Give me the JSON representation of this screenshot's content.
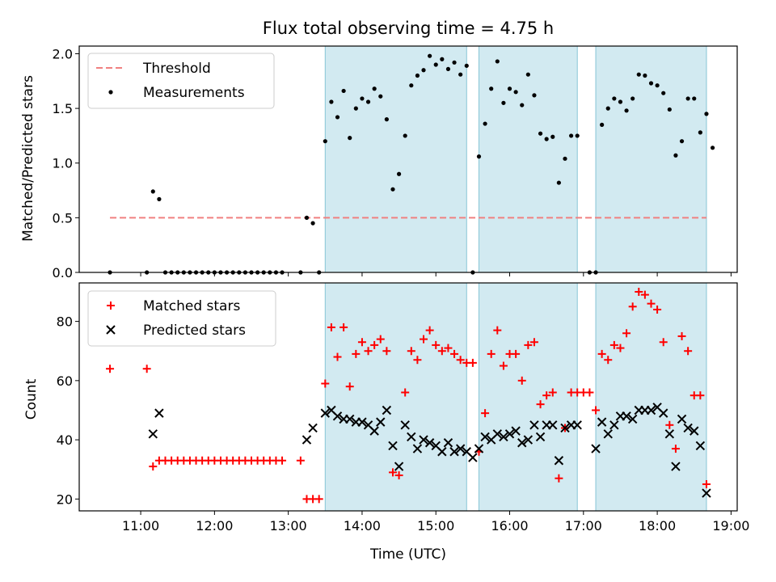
{
  "chart_data": [
    {
      "type": "scatter",
      "title": "Flux total observing time = 4.75 h",
      "ylabel": "Matched/Predicted stars",
      "ylim": [
        0,
        2.07
      ],
      "yticks": [
        "0.0",
        "0.5",
        "1.0",
        "1.5",
        "2.0"
      ],
      "ytick_values": [
        0,
        0.5,
        1.0,
        1.5,
        2.0
      ],
      "threshold": {
        "name": "Threshold",
        "value": 0.5,
        "x_range": [
          "10:35",
          "18:40"
        ],
        "color": "#f08080"
      },
      "legend": {
        "placement": "top-left",
        "entries": [
          "Threshold",
          "Measurements"
        ]
      },
      "series": [
        {
          "name": "Measurements",
          "color": "#000000",
          "points": [
            [
              "10:35",
              0
            ],
            [
              "11:05",
              0
            ],
            [
              "11:10",
              0.74
            ],
            [
              "11:15",
              0.67
            ],
            [
              "11:20",
              0
            ],
            [
              "11:25",
              0
            ],
            [
              "11:30",
              0
            ],
            [
              "11:35",
              0
            ],
            [
              "11:40",
              0
            ],
            [
              "11:45",
              0
            ],
            [
              "11:50",
              0
            ],
            [
              "11:55",
              0
            ],
            [
              "12:00",
              0
            ],
            [
              "12:05",
              0
            ],
            [
              "12:10",
              0
            ],
            [
              "12:15",
              0
            ],
            [
              "12:20",
              0
            ],
            [
              "12:25",
              0
            ],
            [
              "12:30",
              0
            ],
            [
              "12:35",
              0
            ],
            [
              "12:40",
              0
            ],
            [
              "12:45",
              0
            ],
            [
              "12:50",
              0
            ],
            [
              "12:55",
              0
            ],
            [
              "13:10",
              0
            ],
            [
              "13:15",
              0.5
            ],
            [
              "13:20",
              0.45
            ],
            [
              "13:25",
              0
            ],
            [
              "13:30",
              1.2
            ],
            [
              "13:35",
              1.56
            ],
            [
              "13:40",
              1.42
            ],
            [
              "13:45",
              1.66
            ],
            [
              "13:50",
              1.23
            ],
            [
              "13:55",
              1.5
            ],
            [
              "14:00",
              1.59
            ],
            [
              "14:05",
              1.56
            ],
            [
              "14:10",
              1.68
            ],
            [
              "14:15",
              1.61
            ],
            [
              "14:20",
              1.4
            ],
            [
              "14:25",
              0.76
            ],
            [
              "14:30",
              0.9
            ],
            [
              "14:35",
              1.25
            ],
            [
              "14:40",
              1.71
            ],
            [
              "14:45",
              1.8
            ],
            [
              "14:50",
              1.85
            ],
            [
              "14:55",
              1.98
            ],
            [
              "15:00",
              1.9
            ],
            [
              "15:05",
              1.95
            ],
            [
              "15:10",
              1.86
            ],
            [
              "15:15",
              1.92
            ],
            [
              "15:20",
              1.81
            ],
            [
              "15:25",
              1.89
            ],
            [
              "15:30",
              0
            ],
            [
              "15:35",
              1.06
            ],
            [
              "15:40",
              1.36
            ],
            [
              "15:45",
              1.68
            ],
            [
              "15:50",
              1.93
            ],
            [
              "15:55",
              1.55
            ],
            [
              "16:00",
              1.68
            ],
            [
              "16:05",
              1.65
            ],
            [
              "16:10",
              1.53
            ],
            [
              "16:15",
              1.81
            ],
            [
              "16:20",
              1.62
            ],
            [
              "16:25",
              1.27
            ],
            [
              "16:30",
              1.22
            ],
            [
              "16:35",
              1.24
            ],
            [
              "16:40",
              0.82
            ],
            [
              "16:45",
              1.04
            ],
            [
              "16:50",
              1.25
            ],
            [
              "16:55",
              1.25
            ],
            [
              "17:05",
              0
            ],
            [
              "17:10",
              0
            ],
            [
              "17:15",
              1.35
            ],
            [
              "17:20",
              1.5
            ],
            [
              "17:25",
              1.59
            ],
            [
              "17:30",
              1.56
            ],
            [
              "17:35",
              1.48
            ],
            [
              "17:40",
              1.59
            ],
            [
              "17:45",
              1.81
            ],
            [
              "17:50",
              1.8
            ],
            [
              "17:55",
              1.73
            ],
            [
              "18:00",
              1.71
            ],
            [
              "18:05",
              1.64
            ],
            [
              "18:10",
              1.49
            ],
            [
              "18:15",
              1.07
            ],
            [
              "18:20",
              1.2
            ],
            [
              "18:25",
              1.59
            ],
            [
              "18:30",
              1.59
            ],
            [
              "18:35",
              1.28
            ],
            [
              "18:40",
              1.45
            ],
            [
              "18:45",
              1.14
            ]
          ]
        }
      ]
    },
    {
      "type": "scatter",
      "xlabel": "Time (UTC)",
      "ylabel": "Count",
      "ylim": [
        16,
        93
      ],
      "yticks": [
        "20",
        "40",
        "60",
        "80"
      ],
      "ytick_values": [
        20,
        40,
        60,
        80
      ],
      "legend": {
        "placement": "top-left",
        "entries": [
          "Matched stars",
          "Predicted stars"
        ]
      },
      "series": [
        {
          "name": "Matched stars",
          "marker": "+",
          "color": "#ff0000",
          "points": [
            [
              "10:35",
              64
            ],
            [
              "11:05",
              64
            ],
            [
              "11:10",
              31
            ],
            [
              "11:15",
              33
            ],
            [
              "11:20",
              33
            ],
            [
              "11:25",
              33
            ],
            [
              "11:30",
              33
            ],
            [
              "11:35",
              33
            ],
            [
              "11:40",
              33
            ],
            [
              "11:45",
              33
            ],
            [
              "11:50",
              33
            ],
            [
              "11:55",
              33
            ],
            [
              "12:00",
              33
            ],
            [
              "12:05",
              33
            ],
            [
              "12:10",
              33
            ],
            [
              "12:15",
              33
            ],
            [
              "12:20",
              33
            ],
            [
              "12:25",
              33
            ],
            [
              "12:30",
              33
            ],
            [
              "12:35",
              33
            ],
            [
              "12:40",
              33
            ],
            [
              "12:45",
              33
            ],
            [
              "12:50",
              33
            ],
            [
              "12:55",
              33
            ],
            [
              "13:10",
              33
            ],
            [
              "13:15",
              20
            ],
            [
              "13:20",
              20
            ],
            [
              "13:25",
              20
            ],
            [
              "13:30",
              59
            ],
            [
              "13:35",
              78
            ],
            [
              "13:40",
              68
            ],
            [
              "13:45",
              78
            ],
            [
              "13:50",
              58
            ],
            [
              "13:55",
              69
            ],
            [
              "14:00",
              73
            ],
            [
              "14:05",
              70
            ],
            [
              "14:10",
              72
            ],
            [
              "14:15",
              74
            ],
            [
              "14:20",
              70
            ],
            [
              "14:25",
              29
            ],
            [
              "14:30",
              28
            ],
            [
              "14:35",
              56
            ],
            [
              "14:40",
              70
            ],
            [
              "14:45",
              67
            ],
            [
              "14:50",
              74
            ],
            [
              "14:55",
              77
            ],
            [
              "15:00",
              72
            ],
            [
              "15:05",
              70
            ],
            [
              "15:10",
              71
            ],
            [
              "15:15",
              69
            ],
            [
              "15:20",
              67
            ],
            [
              "15:25",
              66
            ],
            [
              "15:30",
              66
            ],
            [
              "15:35",
              36
            ],
            [
              "15:40",
              49
            ],
            [
              "15:45",
              69
            ],
            [
              "15:50",
              77
            ],
            [
              "15:55",
              65
            ],
            [
              "16:00",
              69
            ],
            [
              "16:05",
              69
            ],
            [
              "16:10",
              60
            ],
            [
              "16:15",
              72
            ],
            [
              "16:20",
              73
            ],
            [
              "16:25",
              52
            ],
            [
              "16:30",
              55
            ],
            [
              "16:35",
              56
            ],
            [
              "16:40",
              27
            ],
            [
              "16:45",
              44
            ],
            [
              "16:50",
              56
            ],
            [
              "16:55",
              56
            ],
            [
              "17:00",
              56
            ],
            [
              "17:05",
              56
            ],
            [
              "17:10",
              50
            ],
            [
              "17:15",
              69
            ],
            [
              "17:20",
              67
            ],
            [
              "17:25",
              72
            ],
            [
              "17:30",
              71
            ],
            [
              "17:35",
              76
            ],
            [
              "17:40",
              85
            ],
            [
              "17:45",
              90
            ],
            [
              "17:50",
              89
            ],
            [
              "17:55",
              86
            ],
            [
              "18:00",
              84
            ],
            [
              "18:05",
              73
            ],
            [
              "18:10",
              45
            ],
            [
              "18:15",
              37
            ],
            [
              "18:20",
              75
            ],
            [
              "18:25",
              70
            ],
            [
              "18:30",
              55
            ],
            [
              "18:35",
              55
            ],
            [
              "18:40",
              25
            ]
          ]
        },
        {
          "name": "Predicted stars",
          "marker": "x",
          "color": "#000000",
          "points": [
            [
              "11:10",
              42
            ],
            [
              "11:15",
              49
            ],
            [
              "13:15",
              40
            ],
            [
              "13:20",
              44
            ],
            [
              "13:30",
              49
            ],
            [
              "13:35",
              50
            ],
            [
              "13:40",
              48
            ],
            [
              "13:45",
              47
            ],
            [
              "13:50",
              47
            ],
            [
              "13:55",
              46
            ],
            [
              "14:00",
              46
            ],
            [
              "14:05",
              45
            ],
            [
              "14:10",
              43
            ],
            [
              "14:15",
              46
            ],
            [
              "14:20",
              50
            ],
            [
              "14:25",
              38
            ],
            [
              "14:30",
              31
            ],
            [
              "14:35",
              45
            ],
            [
              "14:40",
              41
            ],
            [
              "14:45",
              37
            ],
            [
              "14:50",
              40
            ],
            [
              "14:55",
              39
            ],
            [
              "15:00",
              38
            ],
            [
              "15:05",
              36
            ],
            [
              "15:10",
              39
            ],
            [
              "15:15",
              36
            ],
            [
              "15:20",
              37
            ],
            [
              "15:25",
              36
            ],
            [
              "15:30",
              34
            ],
            [
              "15:35",
              37
            ],
            [
              "15:40",
              41
            ],
            [
              "15:45",
              40
            ],
            [
              "15:50",
              42
            ],
            [
              "15:55",
              41
            ],
            [
              "16:00",
              42
            ],
            [
              "16:05",
              43
            ],
            [
              "16:10",
              39
            ],
            [
              "16:15",
              40
            ],
            [
              "16:20",
              45
            ],
            [
              "16:25",
              41
            ],
            [
              "16:30",
              45
            ],
            [
              "16:35",
              45
            ],
            [
              "16:40",
              33
            ],
            [
              "16:45",
              44
            ],
            [
              "16:50",
              45
            ],
            [
              "16:55",
              45
            ],
            [
              "17:10",
              37
            ],
            [
              "17:15",
              46
            ],
            [
              "17:20",
              42
            ],
            [
              "17:25",
              45
            ],
            [
              "17:30",
              48
            ],
            [
              "17:35",
              48
            ],
            [
              "17:40",
              47
            ],
            [
              "17:45",
              50
            ],
            [
              "17:50",
              50
            ],
            [
              "17:55",
              50
            ],
            [
              "18:00",
              51
            ],
            [
              "18:05",
              49
            ],
            [
              "18:10",
              42
            ],
            [
              "18:15",
              31
            ],
            [
              "18:20",
              47
            ],
            [
              "18:25",
              44
            ],
            [
              "18:30",
              43
            ],
            [
              "18:35",
              38
            ],
            [
              "18:40",
              22
            ]
          ]
        }
      ]
    }
  ],
  "x_axis": {
    "range": [
      "10:10",
      "19:05"
    ],
    "ticks": [
      "11:00",
      "12:00",
      "13:00",
      "14:00",
      "15:00",
      "16:00",
      "17:00",
      "18:00",
      "19:00"
    ]
  },
  "observing_windows": {
    "color": "#add8e6",
    "ranges": [
      [
        "13:30",
        "15:25"
      ],
      [
        "15:35",
        "16:55"
      ],
      [
        "17:10",
        "18:40"
      ]
    ]
  }
}
